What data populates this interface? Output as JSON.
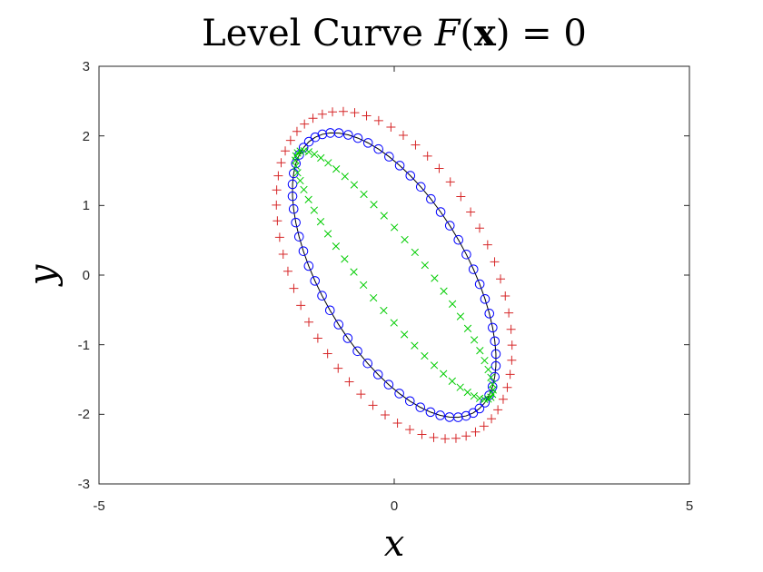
{
  "chart_data": {
    "type": "scatter",
    "title": {
      "prefix": "Level Curve ",
      "func": "F",
      "open": "(",
      "var": "x",
      "close": ")",
      "equals": " = ",
      "value": "0"
    },
    "xlabel": "x",
    "ylabel": "y",
    "xlim": [
      -5,
      5
    ],
    "ylim": [
      -3,
      3
    ],
    "x_ticks": [
      "-5",
      "0",
      "5"
    ],
    "y_ticks": [
      "3",
      "2",
      "1",
      "0",
      "-1",
      "-2",
      "-3"
    ],
    "grid": false,
    "legend": "none",
    "series": [
      {
        "marker": "+",
        "color": "#d62728",
        "ellipse": {
          "center": [
            0,
            0
          ],
          "semi_axes": [
            2.65,
            1.58
          ],
          "rotation_deg": -55
        },
        "points": 60
      },
      {
        "marker": "o",
        "color": "#0000ff",
        "line_color": "#000000",
        "ellipse": {
          "center": [
            0,
            0
          ],
          "semi_axes": [
            2.4,
            1.18
          ],
          "rotation_deg": -53
        },
        "points": 60
      },
      {
        "marker": "x",
        "color": "#00cc00",
        "ellipse": {
          "center": [
            0,
            0
          ],
          "semi_axes": [
            2.4,
            0.48
          ],
          "rotation_deg": -47
        },
        "points": 60
      }
    ]
  }
}
